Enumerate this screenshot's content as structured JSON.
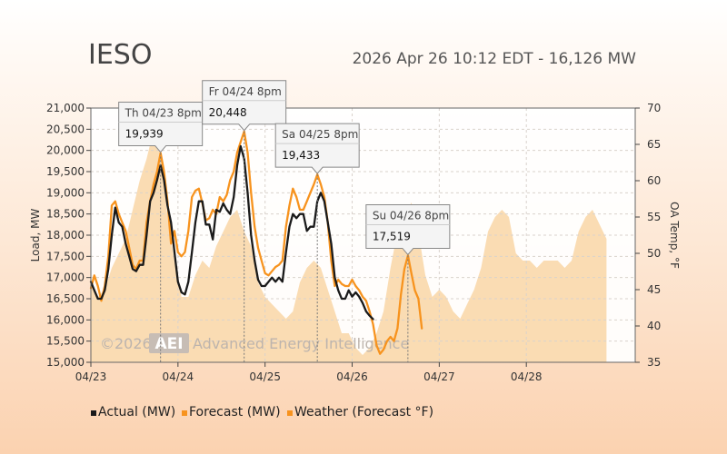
{
  "header": {
    "title": "IESO",
    "status": "2026 Apr 26 10:12 EDT - 16,126 MW"
  },
  "watermark": {
    "copyright": "©2026",
    "logo": "AEI",
    "company": "Advanced Energy Intelligence"
  },
  "colors": {
    "actual": "#1a1a1a",
    "forecast": "#f7931e",
    "weather_fill": "#f9d6a6",
    "grid": "#d9d2cc",
    "peak_red": "#cc0000"
  },
  "chart_data": {
    "type": "line",
    "xlabel": "",
    "ylabel": "Load, MW",
    "y2label": "OA Temp, °F",
    "ylim": [
      15000,
      21000
    ],
    "y2lim": [
      35,
      70
    ],
    "xlim": [
      0,
      6.25
    ],
    "x_ticks": [
      {
        "x": 0,
        "label": "04/23"
      },
      {
        "x": 1,
        "label": "04/24"
      },
      {
        "x": 2,
        "label": "04/25"
      },
      {
        "x": 3,
        "label": "04/26"
      },
      {
        "x": 4,
        "label": "04/27"
      },
      {
        "x": 5,
        "label": "04/28"
      }
    ],
    "y_ticks": [
      15000,
      15500,
      16000,
      16500,
      17000,
      17500,
      18000,
      18500,
      19000,
      19500,
      20000,
      20500,
      21000
    ],
    "y_tick_labels": [
      "15,000",
      "15,500",
      "16,000",
      "16,500",
      "17,000",
      "17,500",
      "18,000",
      "18,500",
      "19,000",
      "19,500",
      "20,000",
      "20,500",
      "21,000"
    ],
    "y2_ticks": [
      35,
      40,
      45,
      50,
      55,
      60,
      65,
      70
    ],
    "grid": true,
    "legend": "bottom-left",
    "series": [
      {
        "name": "Actual (MW)",
        "color": "#1a1a1a",
        "points": [
          [
            0,
            16900
          ],
          [
            0.04,
            16700
          ],
          [
            0.08,
            16500
          ],
          [
            0.12,
            16500
          ],
          [
            0.16,
            16700
          ],
          [
            0.2,
            17200
          ],
          [
            0.24,
            18000
          ],
          [
            0.28,
            18650
          ],
          [
            0.32,
            18300
          ],
          [
            0.36,
            18200
          ],
          [
            0.4,
            17800
          ],
          [
            0.44,
            17500
          ],
          [
            0.48,
            17200
          ],
          [
            0.52,
            17150
          ],
          [
            0.56,
            17300
          ],
          [
            0.6,
            17300
          ],
          [
            0.64,
            18000
          ],
          [
            0.68,
            18800
          ],
          [
            0.72,
            19000
          ],
          [
            0.76,
            19300
          ],
          [
            0.8,
            19650
          ],
          [
            0.84,
            19300
          ],
          [
            0.88,
            18700
          ],
          [
            0.92,
            18300
          ],
          [
            0.96,
            17600
          ],
          [
            1.0,
            16900
          ],
          [
            1.04,
            16650
          ],
          [
            1.08,
            16600
          ],
          [
            1.12,
            16900
          ],
          [
            1.16,
            17600
          ],
          [
            1.2,
            18300
          ],
          [
            1.24,
            18800
          ],
          [
            1.28,
            18800
          ],
          [
            1.32,
            18250
          ],
          [
            1.36,
            18250
          ],
          [
            1.4,
            17900
          ],
          [
            1.44,
            18600
          ],
          [
            1.48,
            18550
          ],
          [
            1.52,
            18750
          ],
          [
            1.56,
            18600
          ],
          [
            1.6,
            18500
          ],
          [
            1.64,
            18900
          ],
          [
            1.68,
            19650
          ],
          [
            1.72,
            20100
          ],
          [
            1.76,
            19800
          ],
          [
            1.8,
            19000
          ],
          [
            1.84,
            18000
          ],
          [
            1.88,
            17400
          ],
          [
            1.92,
            16950
          ],
          [
            1.96,
            16800
          ],
          [
            2.0,
            16800
          ],
          [
            2.04,
            16900
          ],
          [
            2.08,
            17000
          ],
          [
            2.12,
            16900
          ],
          [
            2.16,
            17000
          ],
          [
            2.2,
            16900
          ],
          [
            2.24,
            17600
          ],
          [
            2.28,
            18200
          ],
          [
            2.32,
            18500
          ],
          [
            2.36,
            18400
          ],
          [
            2.4,
            18500
          ],
          [
            2.44,
            18500
          ],
          [
            2.48,
            18100
          ],
          [
            2.52,
            18200
          ],
          [
            2.56,
            18200
          ],
          [
            2.6,
            18800
          ],
          [
            2.64,
            19000
          ],
          [
            2.68,
            18800
          ],
          [
            2.72,
            18300
          ],
          [
            2.76,
            17800
          ],
          [
            2.8,
            17000
          ],
          [
            2.84,
            16700
          ],
          [
            2.88,
            16500
          ],
          [
            2.92,
            16500
          ],
          [
            2.96,
            16700
          ],
          [
            3.0,
            16550
          ],
          [
            3.04,
            16650
          ],
          [
            3.08,
            16550
          ],
          [
            3.12,
            16400
          ],
          [
            3.16,
            16200
          ],
          [
            3.2,
            16100
          ],
          [
            3.24,
            16020
          ]
        ]
      },
      {
        "name": "Forecast (MW)",
        "color": "#f7931e",
        "points": [
          [
            0,
            16750
          ],
          [
            0.04,
            17050
          ],
          [
            0.08,
            16800
          ],
          [
            0.12,
            16450
          ],
          [
            0.16,
            16800
          ],
          [
            0.2,
            17500
          ],
          [
            0.24,
            18700
          ],
          [
            0.28,
            18800
          ],
          [
            0.32,
            18500
          ],
          [
            0.36,
            18300
          ],
          [
            0.4,
            18100
          ],
          [
            0.44,
            17700
          ],
          [
            0.48,
            17300
          ],
          [
            0.52,
            17200
          ],
          [
            0.56,
            17400
          ],
          [
            0.6,
            17400
          ],
          [
            0.64,
            18300
          ],
          [
            0.68,
            18800
          ],
          [
            0.72,
            19200
          ],
          [
            0.76,
            19500
          ],
          [
            0.8,
            19940
          ],
          [
            0.84,
            19500
          ],
          [
            0.88,
            18800
          ],
          [
            0.92,
            17800
          ],
          [
            0.96,
            18100
          ],
          [
            1.0,
            17600
          ],
          [
            1.04,
            17500
          ],
          [
            1.08,
            17600
          ],
          [
            1.12,
            18100
          ],
          [
            1.16,
            18900
          ],
          [
            1.2,
            19050
          ],
          [
            1.24,
            19100
          ],
          [
            1.28,
            18750
          ],
          [
            1.32,
            18350
          ],
          [
            1.36,
            18400
          ],
          [
            1.4,
            18600
          ],
          [
            1.44,
            18500
          ],
          [
            1.48,
            18900
          ],
          [
            1.52,
            18800
          ],
          [
            1.56,
            18950
          ],
          [
            1.6,
            19300
          ],
          [
            1.64,
            19500
          ],
          [
            1.68,
            19950
          ],
          [
            1.72,
            20200
          ],
          [
            1.76,
            20450
          ],
          [
            1.8,
            19950
          ],
          [
            1.84,
            19000
          ],
          [
            1.88,
            18200
          ],
          [
            1.92,
            17700
          ],
          [
            1.96,
            17400
          ],
          [
            2.0,
            17100
          ],
          [
            2.04,
            17050
          ],
          [
            2.08,
            17150
          ],
          [
            2.12,
            17250
          ],
          [
            2.16,
            17300
          ],
          [
            2.2,
            17400
          ],
          [
            2.24,
            18200
          ],
          [
            2.28,
            18700
          ],
          [
            2.32,
            19100
          ],
          [
            2.36,
            18900
          ],
          [
            2.4,
            18600
          ],
          [
            2.44,
            18600
          ],
          [
            2.48,
            18800
          ],
          [
            2.52,
            19000
          ],
          [
            2.56,
            19200
          ],
          [
            2.6,
            19433
          ],
          [
            2.64,
            19200
          ],
          [
            2.68,
            18900
          ],
          [
            2.72,
            18300
          ],
          [
            2.76,
            17400
          ],
          [
            2.8,
            16800
          ],
          [
            2.84,
            16950
          ],
          [
            2.88,
            16850
          ],
          [
            2.92,
            16800
          ],
          [
            2.96,
            16800
          ],
          [
            3.0,
            16950
          ],
          [
            3.04,
            16800
          ],
          [
            3.08,
            16700
          ],
          [
            3.12,
            16550
          ],
          [
            3.16,
            16450
          ],
          [
            3.2,
            16200
          ],
          [
            3.24,
            15900
          ],
          [
            3.28,
            15400
          ],
          [
            3.32,
            15200
          ],
          [
            3.36,
            15300
          ],
          [
            3.4,
            15500
          ],
          [
            3.44,
            15600
          ],
          [
            3.48,
            15500
          ],
          [
            3.52,
            15800
          ],
          [
            3.56,
            16600
          ],
          [
            3.6,
            17200
          ],
          [
            3.64,
            17519
          ],
          [
            3.68,
            17100
          ],
          [
            3.72,
            16700
          ],
          [
            3.76,
            16500
          ],
          [
            3.8,
            15800
          ]
        ]
      },
      {
        "name": "Weather (Forecast °F)",
        "color": "#f9d6a6",
        "axis": "right",
        "points": [
          [
            0,
            46
          ],
          [
            0.08,
            44
          ],
          [
            0.16,
            45
          ],
          [
            0.24,
            48
          ],
          [
            0.32,
            50
          ],
          [
            0.4,
            52
          ],
          [
            0.48,
            56
          ],
          [
            0.56,
            60
          ],
          [
            0.64,
            63
          ],
          [
            0.72,
            67
          ],
          [
            0.8,
            64
          ],
          [
            0.88,
            55
          ],
          [
            0.96,
            49
          ],
          [
            1.04,
            44
          ],
          [
            1.12,
            44
          ],
          [
            1.2,
            47
          ],
          [
            1.28,
            49
          ],
          [
            1.36,
            48
          ],
          [
            1.44,
            51
          ],
          [
            1.52,
            53
          ],
          [
            1.6,
            55
          ],
          [
            1.68,
            56
          ],
          [
            1.76,
            53
          ],
          [
            1.84,
            51
          ],
          [
            1.92,
            46
          ],
          [
            2.0,
            44
          ],
          [
            2.08,
            43
          ],
          [
            2.16,
            42
          ],
          [
            2.24,
            41
          ],
          [
            2.32,
            42
          ],
          [
            2.4,
            46
          ],
          [
            2.48,
            48
          ],
          [
            2.56,
            49
          ],
          [
            2.64,
            48
          ],
          [
            2.72,
            45
          ],
          [
            2.8,
            42
          ],
          [
            2.88,
            39
          ],
          [
            2.96,
            39
          ],
          [
            3.04,
            37
          ],
          [
            3.12,
            36
          ],
          [
            3.2,
            37
          ],
          [
            3.28,
            39
          ],
          [
            3.36,
            42
          ],
          [
            3.44,
            48
          ],
          [
            3.52,
            53
          ],
          [
            3.6,
            55
          ],
          [
            3.68,
            57
          ],
          [
            3.76,
            53
          ],
          [
            3.84,
            47
          ],
          [
            3.92,
            44
          ],
          [
            4.0,
            45
          ],
          [
            4.08,
            44
          ],
          [
            4.16,
            42
          ],
          [
            4.24,
            41
          ],
          [
            4.32,
            43
          ],
          [
            4.4,
            45
          ],
          [
            4.48,
            48
          ],
          [
            4.56,
            53
          ],
          [
            4.64,
            55
          ],
          [
            4.72,
            56
          ],
          [
            4.8,
            55
          ],
          [
            4.88,
            50
          ],
          [
            4.96,
            49
          ],
          [
            5.04,
            49
          ],
          [
            5.12,
            48
          ],
          [
            5.2,
            49
          ],
          [
            5.28,
            49
          ],
          [
            5.36,
            49
          ],
          [
            5.44,
            48
          ],
          [
            5.52,
            49
          ],
          [
            5.6,
            53
          ],
          [
            5.68,
            55
          ],
          [
            5.76,
            56
          ],
          [
            5.84,
            54
          ],
          [
            5.92,
            52
          ]
        ]
      }
    ],
    "annotations": [
      {
        "label": "Th 04/23 8pm",
        "value_text": "19,939",
        "x": 0.8,
        "y": 19939,
        "color": "#444444"
      },
      {
        "label": "Fr 04/24 8pm",
        "value_text": "20,448",
        "x": 1.76,
        "y": 20448,
        "color": "#444444"
      },
      {
        "label": "Sa 04/25 8pm",
        "value_text": "19,433",
        "x": 2.6,
        "y": 19433,
        "color": "#444444"
      },
      {
        "label": "Su 04/26 8pm",
        "value_text": "17,519",
        "x": 3.64,
        "y": 17519,
        "color": "#cc0000"
      }
    ]
  }
}
